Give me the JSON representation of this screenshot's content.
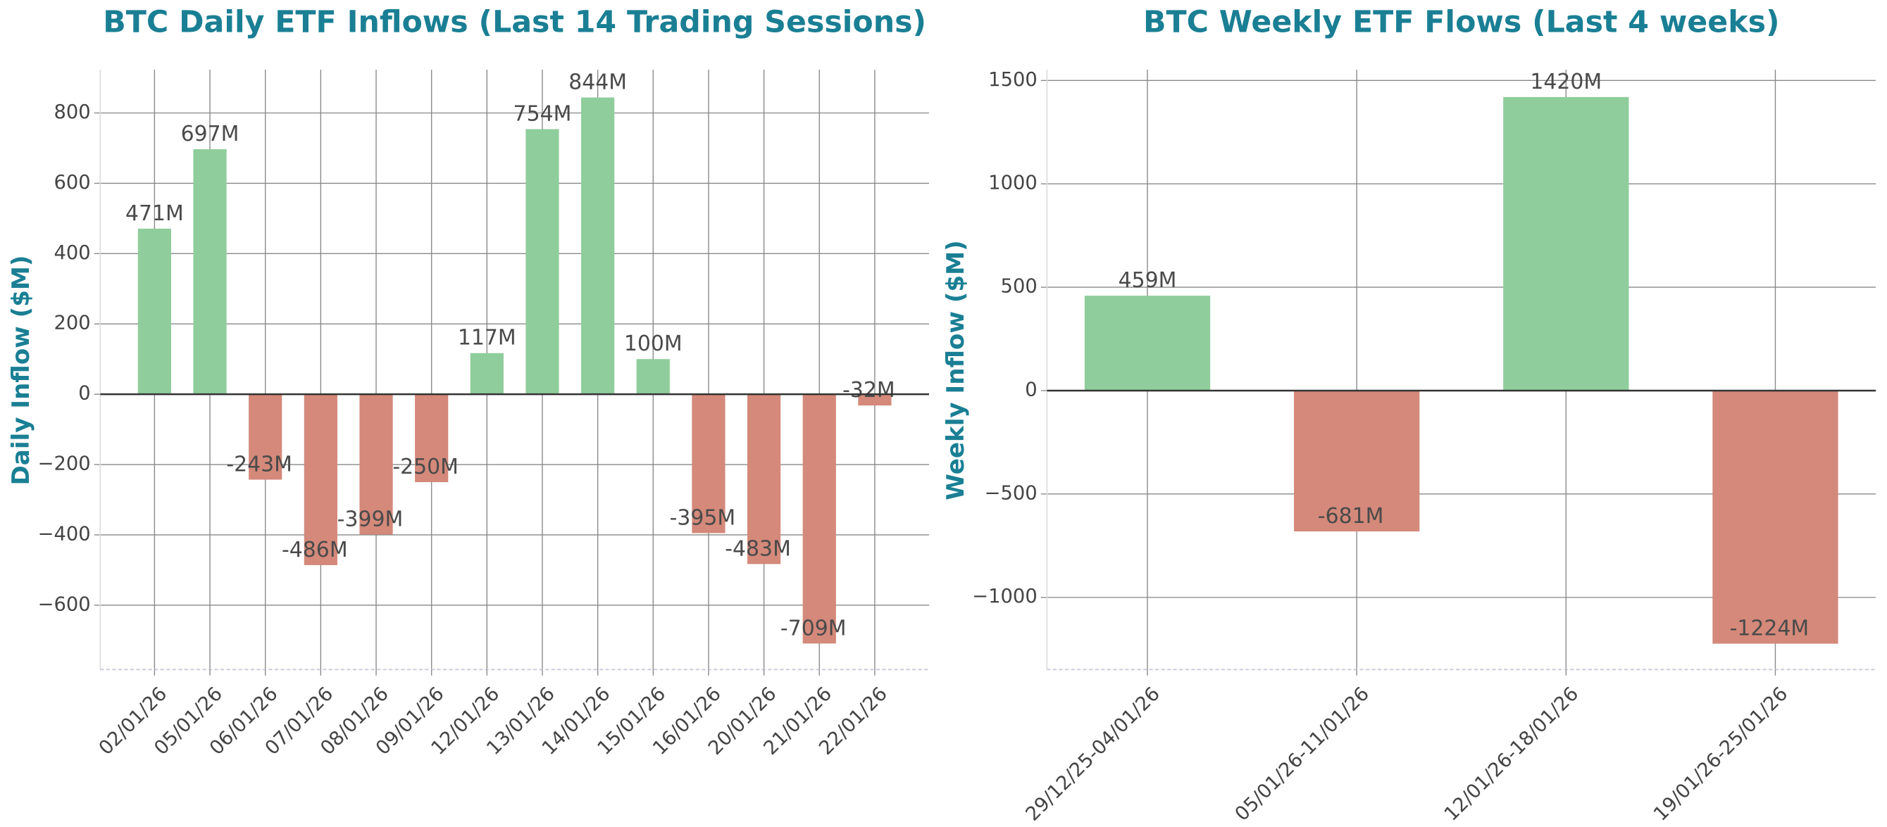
{
  "chart_data": [
    {
      "type": "bar",
      "title": "BTC Daily ETF Inflows (Last 14 Trading Sessions)",
      "ylabel": "Daily Inflow ($M)",
      "categories": [
        "02/01/26",
        "05/01/26",
        "06/01/26",
        "07/01/26",
        "08/01/26",
        "09/01/26",
        "12/01/26",
        "13/01/26",
        "14/01/26",
        "15/01/26",
        "16/01/26",
        "20/01/26",
        "21/01/26",
        "22/01/26"
      ],
      "values": [
        471,
        697,
        -243,
        -486,
        -399,
        -250,
        117,
        754,
        844,
        100,
        -395,
        -483,
        -709,
        -32
      ],
      "value_labels": [
        "471M",
        "697M",
        "-243M",
        "-486M",
        "-399M",
        "-250M",
        "117M",
        "754M",
        "844M",
        "100M",
        "-395M",
        "-483M",
        "-709M",
        "-32M"
      ],
      "positive_color": "#90cd9c",
      "negative_color": "#d4897a",
      "ylim": [
        -783,
        923
      ],
      "yticks": [
        {
          "value": -600,
          "label": "−600"
        },
        {
          "value": -400,
          "label": "−400"
        },
        {
          "value": -200,
          "label": "−200"
        },
        0,
        200,
        400,
        600,
        800
      ],
      "grid": true
    },
    {
      "type": "bar",
      "title": "BTC Weekly ETF Flows (Last 4 weeks)",
      "ylabel": "Weekly Inflow ($M)",
      "categories": [
        "29/12/25-04/01/26",
        "05/01/26-11/01/26",
        "12/01/26-18/01/26",
        "19/01/26-25/01/26"
      ],
      "values": [
        459,
        -681,
        1420,
        -1224
      ],
      "value_labels": [
        "459M",
        "-681M",
        "1420M",
        "-1224M"
      ],
      "positive_color": "#90cd9c",
      "negative_color": "#d4897a",
      "ylim": [
        -1349,
        1552
      ],
      "yticks": [
        {
          "value": -1000,
          "label": "−1000"
        },
        {
          "value": -500,
          "label": "−500"
        },
        0,
        500,
        1000,
        1500
      ],
      "grid": true
    }
  ]
}
